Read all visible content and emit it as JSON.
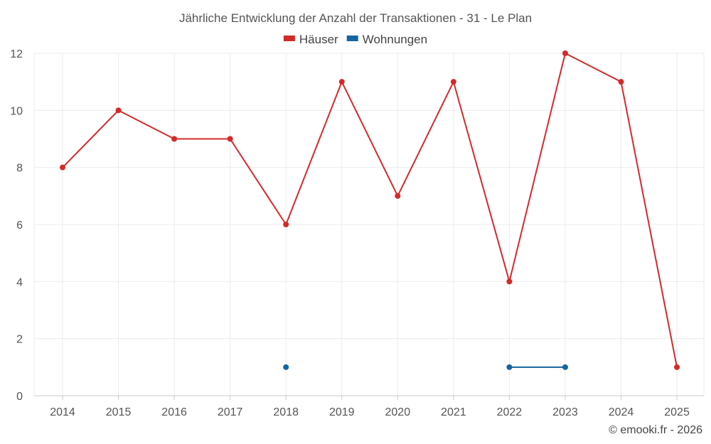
{
  "chart_data": {
    "type": "line",
    "title": "Jährliche Entwicklung der Anzahl der Transaktionen - 31 - Le Plan",
    "categories": [
      "2014",
      "2015",
      "2016",
      "2017",
      "2018",
      "2019",
      "2020",
      "2021",
      "2022",
      "2023",
      "2024",
      "2025"
    ],
    "series": [
      {
        "name": "Häuser",
        "color": "#d32a2a",
        "values": [
          8,
          10,
          9,
          9,
          6,
          11,
          7,
          11,
          4,
          12,
          11,
          1
        ]
      },
      {
        "name": "Wohnungen",
        "color": "#1565a0",
        "values": [
          null,
          null,
          null,
          null,
          1,
          null,
          null,
          null,
          1,
          1,
          null,
          null
        ]
      }
    ],
    "ylim": [
      0,
      12
    ],
    "yticks": [
      0,
      2,
      4,
      6,
      8,
      10,
      12
    ],
    "xlabel": "",
    "ylabel": "",
    "grid": true,
    "legend_position": "top-center"
  },
  "credit": "© emooki.fr - 2026"
}
